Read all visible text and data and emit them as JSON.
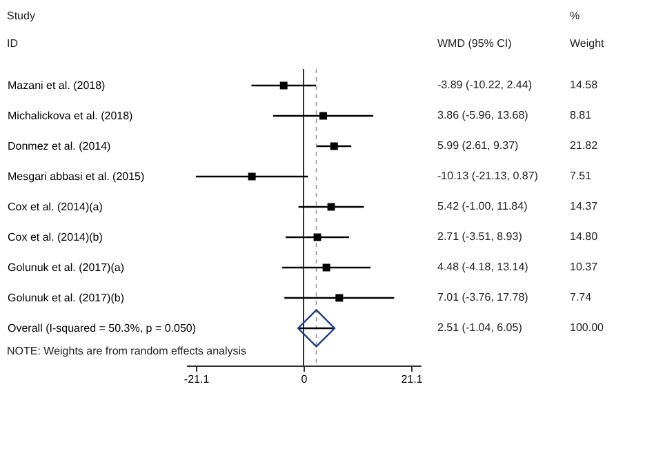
{
  "chart_data": {
    "type": "scatter",
    "orientation": "horizontal",
    "categories": [
      "Mazani et al. (2018)",
      "Michalickova et al. (2018)",
      "Donmez et al. (2014)",
      "Mesgari abbasi et al. (2015)",
      "Cox et al. (2014)(a)",
      "Cox et al. (2014)(b)",
      "Golunuk et al. (2017)(a)",
      "Golunuk et al. (2017)(b)",
      "Overall  (I-squared = 50.3%, p = 0.050)"
    ],
    "series": [
      {
        "color": "#000000",
        "marker": "square",
        "values": [
          -3.89,
          3.86,
          5.99,
          -10.13,
          5.42,
          2.71,
          4.48,
          7.01,
          null
        ],
        "errors": [
          [
            -10.22,
            2.44
          ],
          [
            -5.96,
            13.68
          ],
          [
            2.61,
            9.37
          ],
          [
            -21.13,
            0.87
          ],
          [
            -1.0,
            11.84
          ],
          [
            -3.51,
            8.93
          ],
          [
            -4.18,
            13.14
          ],
          [
            -3.76,
            17.78
          ],
          null
        ]
      },
      {
        "color": "#1f3f8f",
        "marker": "diamond",
        "values": [
          null,
          null,
          null,
          null,
          null,
          null,
          null,
          null,
          2.51
        ],
        "errors": [
          null,
          null,
          null,
          null,
          null,
          null,
          null,
          null,
          [
            -1.04,
            6.05
          ]
        ]
      }
    ],
    "xlim": [
      -23,
      23
    ],
    "xticks": [
      {
        "value": -21.1,
        "label": "-21.1"
      },
      0,
      {
        "value": 21.1,
        "label": "21.1"
      }
    ],
    "grid": false,
    "ref_lines": [
      {
        "axis": "x",
        "value": 0,
        "color": "#000000",
        "line_style": "solid"
      },
      {
        "axis": "x",
        "value": 2.51,
        "color": "#999999",
        "line_style": "dashed"
      }
    ],
    "annotations": [
      "Study",
      "ID",
      "WMD (95% CI)",
      "%",
      "Weight",
      "-3.89 (-10.22, 2.44)",
      "3.86 (-5.96, 13.68)",
      "5.99 (2.61, 9.37)",
      "-10.13 (-21.13, 0.87)",
      "5.42 (-1.00, 11.84)",
      "2.71 (-3.51, 8.93)",
      "4.48 (-4.18, 13.14)",
      "7.01 (-3.76, 17.78)",
      "2.51 (-1.04, 6.05)",
      "14.58",
      "8.81",
      "21.82",
      "7.51",
      "14.37",
      "14.80",
      "10.37",
      "7.74",
      "100.00",
      "NOTE: Weights are from random effects analysis"
    ]
  }
}
